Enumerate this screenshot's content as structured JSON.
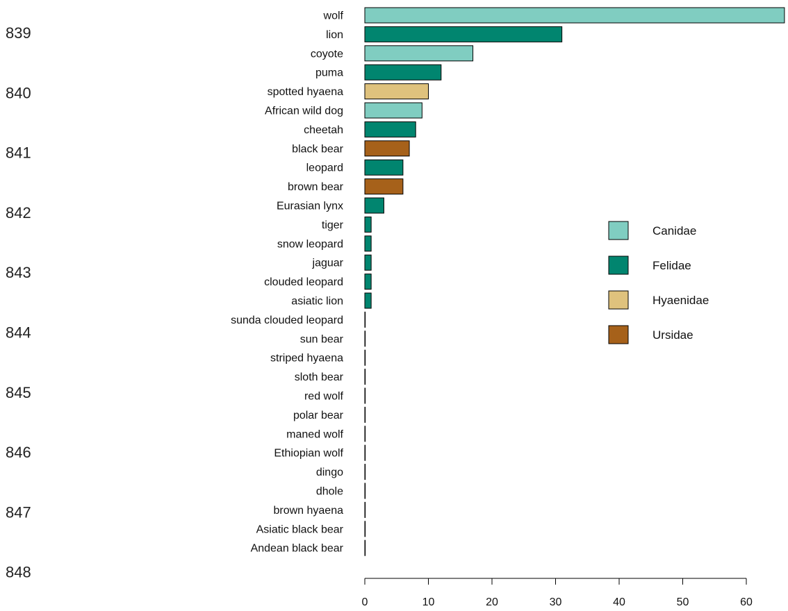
{
  "line_numbers": [
    "839",
    "840",
    "841",
    "842",
    "843",
    "844",
    "845",
    "846",
    "847",
    "848"
  ],
  "chart_data": {
    "type": "bar",
    "orientation": "horizontal",
    "categories": [
      "wolf",
      "lion",
      "coyote",
      "puma",
      "spotted hyaena",
      "African wild dog",
      "cheetah",
      "black bear",
      "leopard",
      "brown bear",
      "Eurasian lynx",
      "tiger",
      "snow leopard",
      "jaguar",
      "clouded leopard",
      "asiatic lion",
      "sunda clouded leopard",
      "sun bear",
      "striped hyaena",
      "sloth bear",
      "red wolf",
      "polar bear",
      "maned wolf",
      "Ethiopian wolf",
      "dingo",
      "dhole",
      "brown hyaena",
      "Asiatic black bear",
      "Andean black bear"
    ],
    "values": [
      66,
      31,
      17,
      12,
      10,
      9,
      8,
      7,
      6,
      6,
      3,
      1,
      1,
      1,
      1,
      1,
      0,
      0,
      0,
      0,
      0,
      0,
      0,
      0,
      0,
      0,
      0,
      0,
      0
    ],
    "groups": [
      "Canidae",
      "Felidae",
      "Canidae",
      "Felidae",
      "Hyaenidae",
      "Canidae",
      "Felidae",
      "Ursidae",
      "Felidae",
      "Ursidae",
      "Felidae",
      "Felidae",
      "Felidae",
      "Felidae",
      "Felidae",
      "Felidae",
      "Felidae",
      "Ursidae",
      "Hyaenidae",
      "Ursidae",
      "Canidae",
      "Ursidae",
      "Canidae",
      "Canidae",
      "Canidae",
      "Canidae",
      "Hyaenidae",
      "Ursidae",
      "Ursidae"
    ],
    "legend": [
      {
        "name": "Canidae",
        "color": "#80CDC1"
      },
      {
        "name": "Felidae",
        "color": "#01856F"
      },
      {
        "name": "Hyaenidae",
        "color": "#DFC27D"
      },
      {
        "name": "Ursidae",
        "color": "#A6611A"
      }
    ],
    "x_ticks": [
      0,
      10,
      20,
      30,
      40,
      50,
      60
    ],
    "xlim": [
      0,
      66
    ],
    "legend_position": "right",
    "grid": false
  }
}
